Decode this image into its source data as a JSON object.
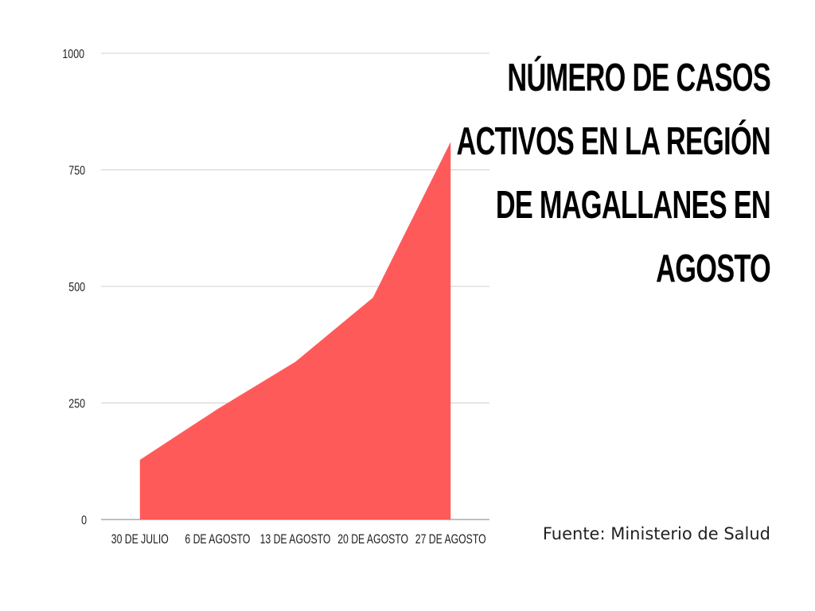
{
  "title": "NÚMERO DE CASOS ACTIVOS EN LA REGIÓN DE MAGALLANES EN AGOSTO",
  "source": "Fuente: Ministerio de Salud",
  "colors": {
    "area": "#ff5a5a",
    "grid": "#d0d0d0",
    "axis": "#999999"
  },
  "chart_data": {
    "type": "area",
    "title": "NÚMERO DE CASOS ACTIVOS EN LA REGIÓN DE MAGALLANES EN AGOSTO",
    "xlabel": "",
    "ylabel": "",
    "categories": [
      "30 DE JULIO",
      "6 DE AGOSTO",
      "13 DE AGOSTO",
      "20 DE AGOSTO",
      "27 DE AGOSTO"
    ],
    "values": [
      128,
      237,
      338,
      476,
      810
    ],
    "ylim": [
      0,
      1000
    ],
    "yticks": [
      0,
      250,
      500,
      750,
      1000
    ],
    "grid": true,
    "legend": "none"
  }
}
